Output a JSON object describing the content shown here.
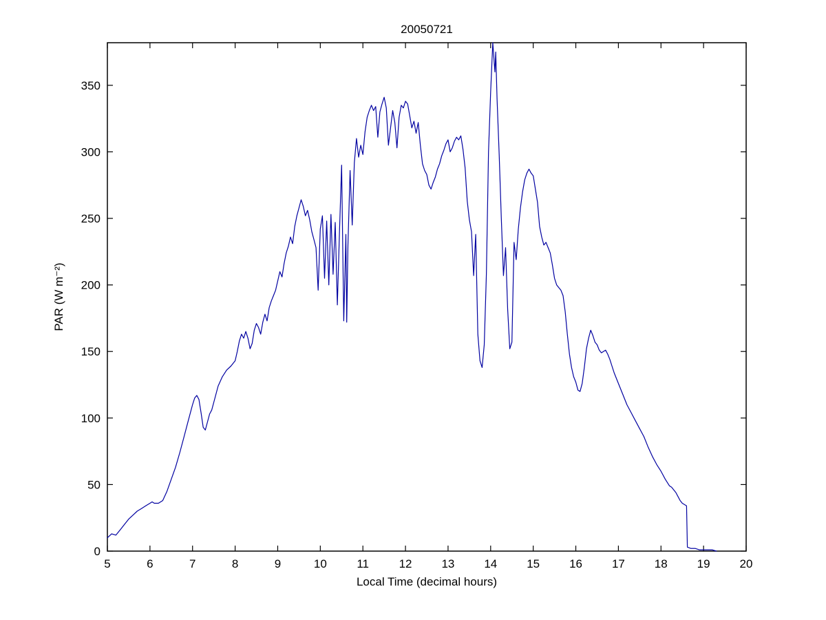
{
  "chart_data": {
    "type": "line",
    "title": "20050721",
    "xlabel": "Local Time (decimal hours)",
    "ylabel": "PAR (W m⁻²)",
    "xlim": [
      5,
      20
    ],
    "ylim": [
      0,
      382
    ],
    "x_ticks": [
      5,
      6,
      7,
      8,
      9,
      10,
      11,
      12,
      13,
      14,
      15,
      16,
      17,
      18,
      19,
      20
    ],
    "y_ticks": [
      0,
      50,
      100,
      150,
      200,
      250,
      300,
      350
    ],
    "grid": false,
    "legend": null,
    "line_color": "#0000A0",
    "axis_color": "#000000",
    "background_color": "#ffffff",
    "series_name": "PAR",
    "points": [
      [
        5.0,
        10
      ],
      [
        5.1,
        13
      ],
      [
        5.2,
        12
      ],
      [
        5.3,
        16
      ],
      [
        5.4,
        20
      ],
      [
        5.5,
        24
      ],
      [
        5.6,
        27
      ],
      [
        5.7,
        30
      ],
      [
        5.8,
        32
      ],
      [
        5.9,
        34
      ],
      [
        6.0,
        36
      ],
      [
        6.05,
        37
      ],
      [
        6.1,
        36
      ],
      [
        6.2,
        36
      ],
      [
        6.3,
        38
      ],
      [
        6.4,
        45
      ],
      [
        6.5,
        54
      ],
      [
        6.6,
        63
      ],
      [
        6.7,
        74
      ],
      [
        6.8,
        86
      ],
      [
        6.9,
        98
      ],
      [
        7.0,
        110
      ],
      [
        7.05,
        115
      ],
      [
        7.1,
        117
      ],
      [
        7.15,
        114
      ],
      [
        7.2,
        104
      ],
      [
        7.25,
        93
      ],
      [
        7.3,
        91
      ],
      [
        7.35,
        97
      ],
      [
        7.4,
        103
      ],
      [
        7.45,
        106
      ],
      [
        7.5,
        112
      ],
      [
        7.6,
        124
      ],
      [
        7.7,
        131
      ],
      [
        7.8,
        136
      ],
      [
        7.9,
        139
      ],
      [
        8.0,
        143
      ],
      [
        8.05,
        150
      ],
      [
        8.1,
        158
      ],
      [
        8.15,
        163
      ],
      [
        8.2,
        160
      ],
      [
        8.25,
        165
      ],
      [
        8.3,
        160
      ],
      [
        8.35,
        152
      ],
      [
        8.4,
        156
      ],
      [
        8.45,
        166
      ],
      [
        8.5,
        171
      ],
      [
        8.55,
        168
      ],
      [
        8.6,
        163
      ],
      [
        8.65,
        172
      ],
      [
        8.7,
        178
      ],
      [
        8.75,
        173
      ],
      [
        8.8,
        183
      ],
      [
        8.85,
        188
      ],
      [
        8.9,
        192
      ],
      [
        8.95,
        196
      ],
      [
        9.0,
        203
      ],
      [
        9.05,
        210
      ],
      [
        9.1,
        206
      ],
      [
        9.15,
        216
      ],
      [
        9.2,
        224
      ],
      [
        9.25,
        229
      ],
      [
        9.3,
        236
      ],
      [
        9.35,
        231
      ],
      [
        9.4,
        244
      ],
      [
        9.45,
        252
      ],
      [
        9.5,
        258
      ],
      [
        9.55,
        264
      ],
      [
        9.6,
        259
      ],
      [
        9.65,
        252
      ],
      [
        9.7,
        256
      ],
      [
        9.75,
        249
      ],
      [
        9.8,
        240
      ],
      [
        9.85,
        234
      ],
      [
        9.9,
        228
      ],
      [
        9.95,
        196
      ],
      [
        10.0,
        242
      ],
      [
        10.05,
        252
      ],
      [
        10.1,
        205
      ],
      [
        10.15,
        248
      ],
      [
        10.2,
        200
      ],
      [
        10.25,
        253
      ],
      [
        10.3,
        208
      ],
      [
        10.35,
        247
      ],
      [
        10.4,
        185
      ],
      [
        10.45,
        240
      ],
      [
        10.5,
        290
      ],
      [
        10.55,
        173
      ],
      [
        10.6,
        238
      ],
      [
        10.62,
        172
      ],
      [
        10.65,
        230
      ],
      [
        10.7,
        286
      ],
      [
        10.75,
        245
      ],
      [
        10.8,
        292
      ],
      [
        10.85,
        310
      ],
      [
        10.9,
        296
      ],
      [
        10.95,
        305
      ],
      [
        11.0,
        298
      ],
      [
        11.05,
        315
      ],
      [
        11.1,
        326
      ],
      [
        11.15,
        331
      ],
      [
        11.2,
        335
      ],
      [
        11.25,
        331
      ],
      [
        11.3,
        334
      ],
      [
        11.35,
        311
      ],
      [
        11.4,
        330
      ],
      [
        11.45,
        336
      ],
      [
        11.5,
        341
      ],
      [
        11.55,
        333
      ],
      [
        11.6,
        305
      ],
      [
        11.65,
        318
      ],
      [
        11.7,
        331
      ],
      [
        11.75,
        322
      ],
      [
        11.8,
        303
      ],
      [
        11.85,
        326
      ],
      [
        11.9,
        335
      ],
      [
        11.95,
        333
      ],
      [
        12.0,
        338
      ],
      [
        12.05,
        336
      ],
      [
        12.1,
        327
      ],
      [
        12.15,
        318
      ],
      [
        12.2,
        323
      ],
      [
        12.25,
        314
      ],
      [
        12.3,
        322
      ],
      [
        12.35,
        305
      ],
      [
        12.4,
        291
      ],
      [
        12.45,
        286
      ],
      [
        12.5,
        283
      ],
      [
        12.55,
        275
      ],
      [
        12.6,
        272
      ],
      [
        12.65,
        277
      ],
      [
        12.7,
        281
      ],
      [
        12.75,
        287
      ],
      [
        12.8,
        291
      ],
      [
        12.85,
        297
      ],
      [
        12.9,
        301
      ],
      [
        12.95,
        306
      ],
      [
        13.0,
        309
      ],
      [
        13.05,
        300
      ],
      [
        13.1,
        303
      ],
      [
        13.15,
        308
      ],
      [
        13.2,
        311
      ],
      [
        13.25,
        309
      ],
      [
        13.3,
        312
      ],
      [
        13.35,
        302
      ],
      [
        13.4,
        288
      ],
      [
        13.45,
        263
      ],
      [
        13.5,
        249
      ],
      [
        13.55,
        240
      ],
      [
        13.6,
        207
      ],
      [
        13.65,
        238
      ],
      [
        13.7,
        163
      ],
      [
        13.75,
        143
      ],
      [
        13.8,
        138
      ],
      [
        13.85,
        155
      ],
      [
        13.9,
        208
      ],
      [
        13.95,
        300
      ],
      [
        14.0,
        345
      ],
      [
        14.05,
        382
      ],
      [
        14.1,
        360
      ],
      [
        14.12,
        375
      ],
      [
        14.15,
        340
      ],
      [
        14.2,
        298
      ],
      [
        14.25,
        250
      ],
      [
        14.3,
        207
      ],
      [
        14.35,
        228
      ],
      [
        14.4,
        182
      ],
      [
        14.45,
        152
      ],
      [
        14.5,
        157
      ],
      [
        14.55,
        232
      ],
      [
        14.6,
        219
      ],
      [
        14.65,
        242
      ],
      [
        14.7,
        258
      ],
      [
        14.75,
        270
      ],
      [
        14.8,
        279
      ],
      [
        14.85,
        284
      ],
      [
        14.9,
        287
      ],
      [
        14.95,
        284
      ],
      [
        15.0,
        282
      ],
      [
        15.05,
        272
      ],
      [
        15.1,
        262
      ],
      [
        15.15,
        244
      ],
      [
        15.2,
        236
      ],
      [
        15.25,
        230
      ],
      [
        15.3,
        232
      ],
      [
        15.35,
        228
      ],
      [
        15.4,
        224
      ],
      [
        15.45,
        215
      ],
      [
        15.5,
        205
      ],
      [
        15.55,
        200
      ],
      [
        15.6,
        198
      ],
      [
        15.65,
        196
      ],
      [
        15.7,
        192
      ],
      [
        15.75,
        180
      ],
      [
        15.8,
        163
      ],
      [
        15.85,
        148
      ],
      [
        15.9,
        138
      ],
      [
        15.95,
        131
      ],
      [
        16.0,
        127
      ],
      [
        16.05,
        121
      ],
      [
        16.1,
        120
      ],
      [
        16.15,
        126
      ],
      [
        16.2,
        138
      ],
      [
        16.25,
        152
      ],
      [
        16.3,
        160
      ],
      [
        16.35,
        166
      ],
      [
        16.4,
        162
      ],
      [
        16.45,
        157
      ],
      [
        16.5,
        155
      ],
      [
        16.55,
        151
      ],
      [
        16.6,
        149
      ],
      [
        16.65,
        150
      ],
      [
        16.7,
        151
      ],
      [
        16.75,
        148
      ],
      [
        16.8,
        144
      ],
      [
        16.85,
        139
      ],
      [
        16.9,
        134
      ],
      [
        17.0,
        126
      ],
      [
        17.1,
        118
      ],
      [
        17.2,
        110
      ],
      [
        17.3,
        104
      ],
      [
        17.4,
        98
      ],
      [
        17.5,
        92
      ],
      [
        17.6,
        86
      ],
      [
        17.7,
        78
      ],
      [
        17.8,
        71
      ],
      [
        17.9,
        65
      ],
      [
        18.0,
        60
      ],
      [
        18.1,
        54
      ],
      [
        18.2,
        49
      ],
      [
        18.25,
        48
      ],
      [
        18.3,
        46
      ],
      [
        18.35,
        44
      ],
      [
        18.4,
        41
      ],
      [
        18.45,
        38
      ],
      [
        18.5,
        36
      ],
      [
        18.55,
        35
      ],
      [
        18.6,
        34
      ],
      [
        18.62,
        3
      ],
      [
        18.7,
        2
      ],
      [
        18.8,
        2
      ],
      [
        18.9,
        1
      ],
      [
        19.0,
        1
      ],
      [
        19.1,
        1
      ],
      [
        19.2,
        1
      ],
      [
        19.3,
        0
      ]
    ]
  }
}
